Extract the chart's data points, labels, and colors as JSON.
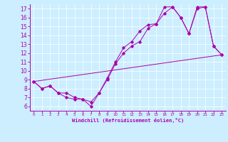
{
  "xlabel": "Windchill (Refroidissement éolien,°C)",
  "bg_color": "#cceeff",
  "line_color": "#aa00aa",
  "xlim": [
    -0.5,
    23.5
  ],
  "ylim": [
    5.5,
    17.5
  ],
  "xticks": [
    0,
    1,
    2,
    3,
    4,
    5,
    6,
    7,
    8,
    9,
    10,
    11,
    12,
    13,
    14,
    15,
    16,
    17,
    18,
    19,
    20,
    21,
    22,
    23
  ],
  "yticks": [
    6,
    7,
    8,
    9,
    10,
    11,
    12,
    13,
    14,
    15,
    16,
    17
  ],
  "curve1": {
    "x": [
      0,
      1,
      2,
      3,
      4,
      5,
      6,
      7,
      8,
      9,
      10,
      11,
      12,
      13,
      14,
      15,
      16,
      17,
      18,
      19,
      20,
      21,
      22,
      23
    ],
    "y": [
      8.8,
      8.0,
      8.3,
      7.5,
      7.5,
      7.0,
      6.8,
      6.0,
      7.5,
      9.2,
      11.0,
      12.6,
      13.3,
      14.5,
      15.2,
      15.3,
      17.2,
      17.2,
      16.0,
      14.2,
      17.2,
      17.2,
      12.8,
      11.8
    ]
  },
  "curve2": {
    "x": [
      0,
      1,
      2,
      3,
      4,
      5,
      6,
      7,
      8,
      9,
      10,
      11,
      12,
      13,
      14,
      15,
      16,
      17,
      18,
      19,
      20,
      21,
      22,
      23
    ],
    "y": [
      8.8,
      8.0,
      8.3,
      7.5,
      7.0,
      6.8,
      6.8,
      6.5,
      7.5,
      9.0,
      10.8,
      12.0,
      12.8,
      13.3,
      14.8,
      15.3,
      16.5,
      17.2,
      16.0,
      14.2,
      17.0,
      17.2,
      12.8,
      11.8
    ]
  },
  "curve3": {
    "x": [
      0,
      23
    ],
    "y": [
      8.8,
      11.8
    ]
  }
}
